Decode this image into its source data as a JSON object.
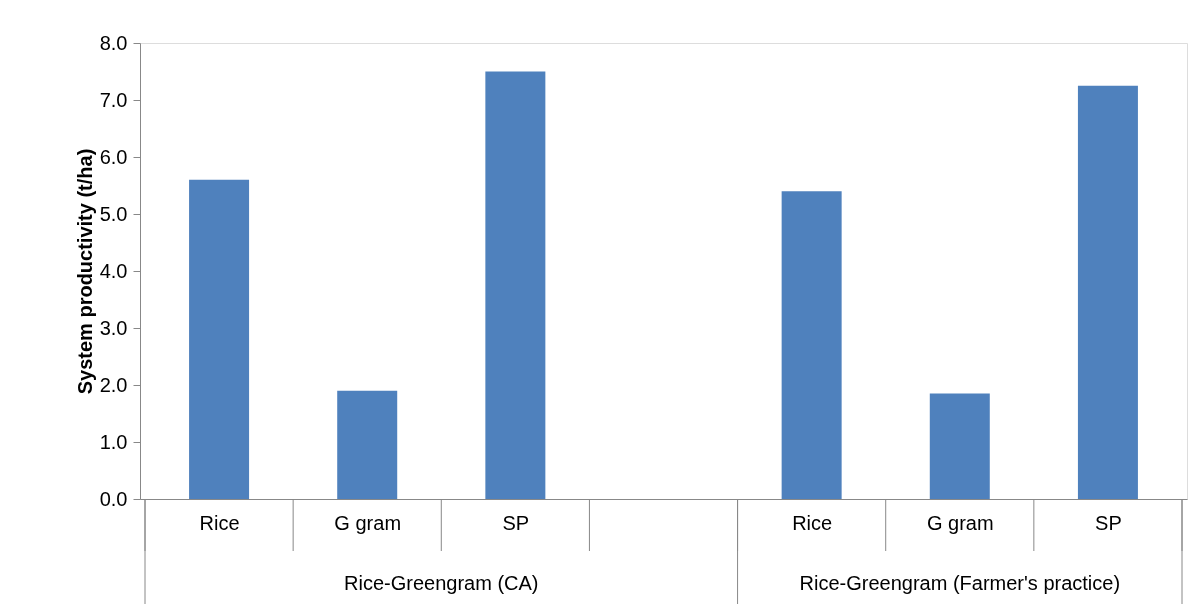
{
  "chart_data": {
    "type": "bar",
    "ylabel": "System productivity (t/ha)",
    "categories": [
      "Rice",
      "G gram",
      "SP",
      null,
      "Rice",
      "G gram",
      "SP"
    ],
    "values": [
      5.6,
      1.9,
      7.5,
      null,
      5.4,
      1.85,
      7.25
    ],
    "color": "#4f81bd",
    "ylim": [
      0,
      8
    ],
    "yticks": [
      {
        "value": 0,
        "label": "0.0"
      },
      {
        "value": 1,
        "label": "1.0"
      },
      {
        "value": 2,
        "label": "2.0"
      },
      {
        "value": 3,
        "label": "3.0"
      },
      {
        "value": 4,
        "label": "4.0"
      },
      {
        "value": 5,
        "label": "5.0"
      },
      {
        "value": 6,
        "label": "6.0"
      },
      {
        "value": 7,
        "label": "7.0"
      },
      {
        "value": 8,
        "label": "8.0"
      }
    ],
    "grid": false,
    "annotations": [
      "Rice-Greengram (CA)",
      "Rice-Greengram (Farmer's practice)"
    ]
  }
}
